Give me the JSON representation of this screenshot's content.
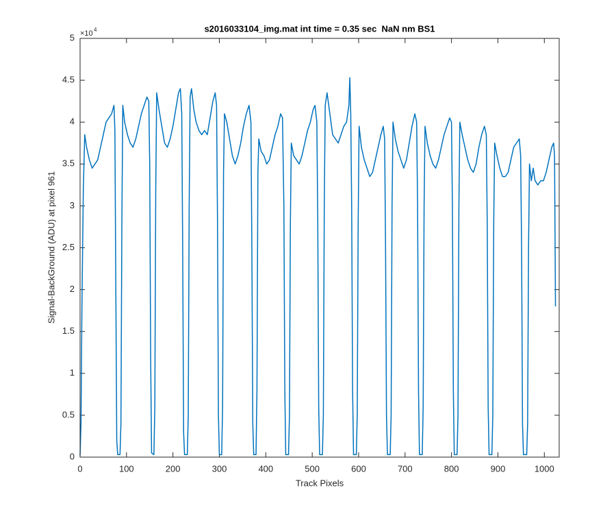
{
  "chart_data": {
    "type": "line",
    "title": "s2016033104_img.mat int time = 0.35 sec  NaN nm BS1",
    "x_label": "Track Pixels",
    "y_label": "Signal-BackGround (ADU) at pixel 961",
    "y_multiplier": {
      "base": "×10",
      "exponent": "4"
    },
    "xlim": [
      0,
      1032
    ],
    "ylim": [
      0,
      5
    ],
    "xticks": [
      0,
      100,
      200,
      300,
      400,
      500,
      600,
      700,
      800,
      900,
      1000
    ],
    "yticks": [
      0,
      0.5,
      1,
      1.5,
      2,
      2.5,
      3,
      3.5,
      4,
      4.5,
      5
    ],
    "grid": false,
    "x": [
      0,
      2,
      4,
      7,
      10,
      14,
      20,
      26,
      32,
      38,
      44,
      50,
      56,
      62,
      68,
      73,
      75,
      77,
      79,
      81,
      86,
      88,
      90,
      92,
      96,
      102,
      108,
      114,
      120,
      126,
      132,
      138,
      144,
      148,
      150,
      152,
      154,
      159,
      161,
      163,
      165,
      170,
      176,
      182,
      188,
      194,
      200,
      206,
      212,
      216,
      219,
      221,
      223,
      225,
      231,
      233,
      235,
      237,
      240,
      245,
      250,
      256,
      262,
      268,
      274,
      280,
      286,
      291,
      294,
      296,
      298,
      300,
      305,
      307,
      309,
      311,
      316,
      322,
      328,
      334,
      340,
      346,
      352,
      358,
      364,
      368,
      370,
      372,
      374,
      379,
      381,
      383,
      385,
      390,
      396,
      402,
      408,
      414,
      420,
      426,
      432,
      436,
      439,
      441,
      443,
      449,
      451,
      453,
      455,
      460,
      466,
      472,
      478,
      484,
      490,
      496,
      502,
      506,
      510,
      512,
      514,
      516,
      522,
      524,
      526,
      528,
      532,
      538,
      544,
      550,
      556,
      562,
      568,
      574,
      579,
      581,
      583,
      585,
      587,
      589,
      595,
      597,
      599,
      601,
      606,
      612,
      618,
      624,
      630,
      636,
      642,
      648,
      653,
      656,
      658,
      660,
      662,
      668,
      670,
      672,
      674,
      679,
      685,
      691,
      697,
      703,
      709,
      715,
      721,
      725,
      727,
      729,
      731,
      737,
      739,
      741,
      743,
      748,
      754,
      760,
      766,
      772,
      778,
      784,
      790,
      796,
      800,
      802,
      804,
      806,
      812,
      814,
      816,
      818,
      823,
      829,
      835,
      841,
      847,
      853,
      859,
      865,
      871,
      875,
      877,
      879,
      881,
      887,
      889,
      891,
      893,
      898,
      904,
      910,
      916,
      922,
      928,
      934,
      940,
      946,
      949,
      951,
      953,
      955,
      962,
      964,
      966,
      968,
      972,
      976,
      980,
      986,
      992,
      998,
      1004,
      1010,
      1016,
      1020,
      1022,
      1024
    ],
    "series": [
      {
        "color": "#0072bd",
        "values": [
          0.02,
          0.4,
          1.8,
          3.2,
          3.85,
          3.7,
          3.55,
          3.45,
          3.5,
          3.55,
          3.7,
          3.85,
          4.0,
          4.05,
          4.1,
          4.2,
          3.9,
          2.0,
          0.2,
          0.03,
          0.03,
          0.4,
          2.8,
          4.2,
          4.0,
          3.85,
          3.75,
          3.7,
          3.8,
          3.95,
          4.1,
          4.2,
          4.3,
          4.25,
          3.5,
          1.2,
          0.05,
          0.03,
          0.6,
          3.2,
          4.35,
          4.15,
          3.95,
          3.75,
          3.7,
          3.8,
          3.95,
          4.15,
          4.35,
          4.4,
          4.1,
          2.5,
          0.3,
          0.03,
          0.03,
          0.5,
          3.0,
          4.3,
          4.4,
          4.15,
          4.0,
          3.9,
          3.85,
          3.9,
          3.85,
          4.05,
          4.25,
          4.35,
          4.2,
          2.8,
          0.5,
          0.03,
          0.03,
          0.6,
          3.4,
          4.1,
          4.0,
          3.8,
          3.6,
          3.5,
          3.6,
          3.75,
          3.95,
          4.1,
          4.2,
          4.0,
          2.5,
          0.4,
          0.03,
          0.03,
          0.8,
          3.4,
          3.8,
          3.65,
          3.6,
          3.5,
          3.55,
          3.7,
          3.85,
          3.95,
          4.1,
          4.05,
          3.0,
          0.8,
          0.03,
          0.03,
          0.5,
          2.8,
          3.75,
          3.6,
          3.55,
          3.5,
          3.6,
          3.75,
          3.9,
          4.0,
          4.15,
          4.2,
          4.0,
          2.8,
          0.6,
          0.03,
          0.03,
          0.5,
          3.0,
          4.2,
          4.35,
          4.1,
          3.85,
          3.8,
          3.75,
          3.85,
          3.95,
          4.0,
          4.2,
          4.53,
          4.1,
          3.0,
          0.8,
          0.03,
          0.03,
          0.5,
          2.8,
          3.95,
          3.7,
          3.55,
          3.45,
          3.35,
          3.4,
          3.55,
          3.7,
          3.85,
          3.95,
          3.8,
          2.5,
          0.5,
          0.03,
          0.03,
          0.5,
          3.0,
          4.0,
          3.8,
          3.65,
          3.55,
          3.45,
          3.55,
          3.75,
          3.95,
          4.1,
          4.0,
          3.0,
          0.8,
          0.03,
          0.03,
          0.6,
          3.0,
          3.95,
          3.75,
          3.6,
          3.5,
          3.45,
          3.55,
          3.7,
          3.85,
          3.95,
          4.05,
          4.0,
          3.0,
          0.8,
          0.03,
          0.03,
          0.5,
          3.0,
          4.0,
          3.85,
          3.7,
          3.55,
          3.45,
          3.4,
          3.5,
          3.7,
          3.85,
          3.95,
          3.85,
          2.8,
          0.6,
          0.03,
          0.03,
          0.5,
          2.8,
          3.75,
          3.6,
          3.45,
          3.35,
          3.35,
          3.4,
          3.55,
          3.7,
          3.75,
          3.8,
          3.6,
          2.5,
          0.4,
          0.03,
          0.03,
          0.4,
          2.5,
          3.5,
          3.3,
          3.45,
          3.3,
          3.25,
          3.3,
          3.3,
          3.4,
          3.55,
          3.7,
          3.75,
          3.6,
          1.8
        ]
      }
    ]
  }
}
